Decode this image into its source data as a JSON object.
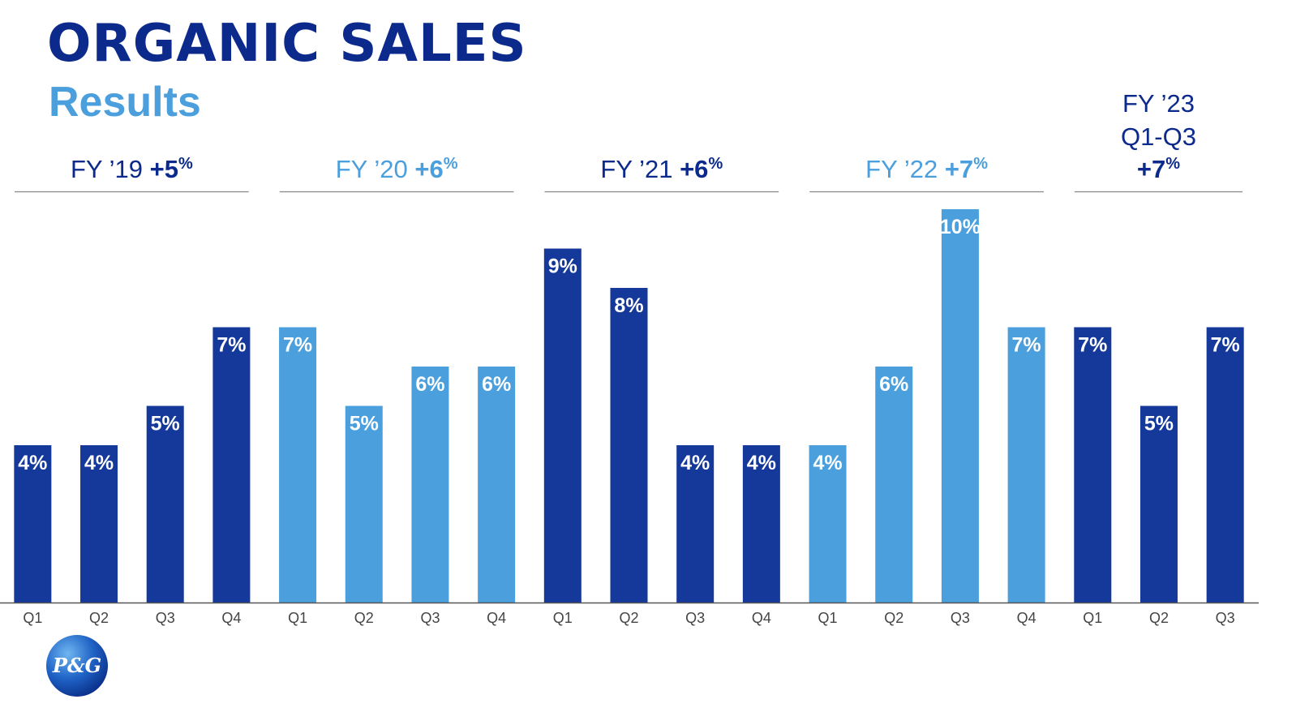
{
  "header": {
    "title": "ORGANIC SALES",
    "subtitle": "Results"
  },
  "logo": {
    "text": "P&G",
    "icon": "pg-logo"
  },
  "colors": {
    "dark_blue": "#15399a",
    "light_blue": "#4a9fdc",
    "title_blue": "#0c2a8c",
    "axis": "#555555"
  },
  "chart_data": {
    "type": "bar",
    "categories": [
      "Q1",
      "Q2",
      "Q3",
      "Q4",
      "Q1",
      "Q2",
      "Q3",
      "Q4",
      "Q1",
      "Q2",
      "Q3",
      "Q4",
      "Q1",
      "Q2",
      "Q3",
      "Q4",
      "Q1",
      "Q2",
      "Q3"
    ],
    "values": [
      4,
      4,
      5,
      7,
      7,
      5,
      6,
      6,
      9,
      8,
      4,
      4,
      4,
      6,
      10,
      7,
      7,
      5,
      7
    ],
    "value_labels": [
      "4%",
      "4%",
      "5%",
      "7%",
      "7%",
      "5%",
      "6%",
      "6%",
      "9%",
      "8%",
      "4%",
      "4%",
      "4%",
      "6%",
      "10%",
      "7%",
      "7%",
      "5%",
      "7%"
    ],
    "ylim": [
      0,
      10
    ],
    "grid": false,
    "groups": [
      {
        "label": "FY ’19",
        "total": "+5",
        "pct": "%",
        "color": "dark",
        "bars": 4
      },
      {
        "label": "FY ’20",
        "total": "+6",
        "pct": "%",
        "color": "light",
        "bars": 4
      },
      {
        "label": "FY ’21",
        "total": "+6",
        "pct": "%",
        "color": "dark",
        "bars": 4
      },
      {
        "label": "FY ’22",
        "total": "+7",
        "pct": "%",
        "color": "light",
        "bars": 4
      },
      {
        "label": "FY ’23",
        "label2": "Q1-Q3",
        "total": "+7",
        "pct": "%",
        "color": "dark",
        "bars": 3
      }
    ]
  }
}
